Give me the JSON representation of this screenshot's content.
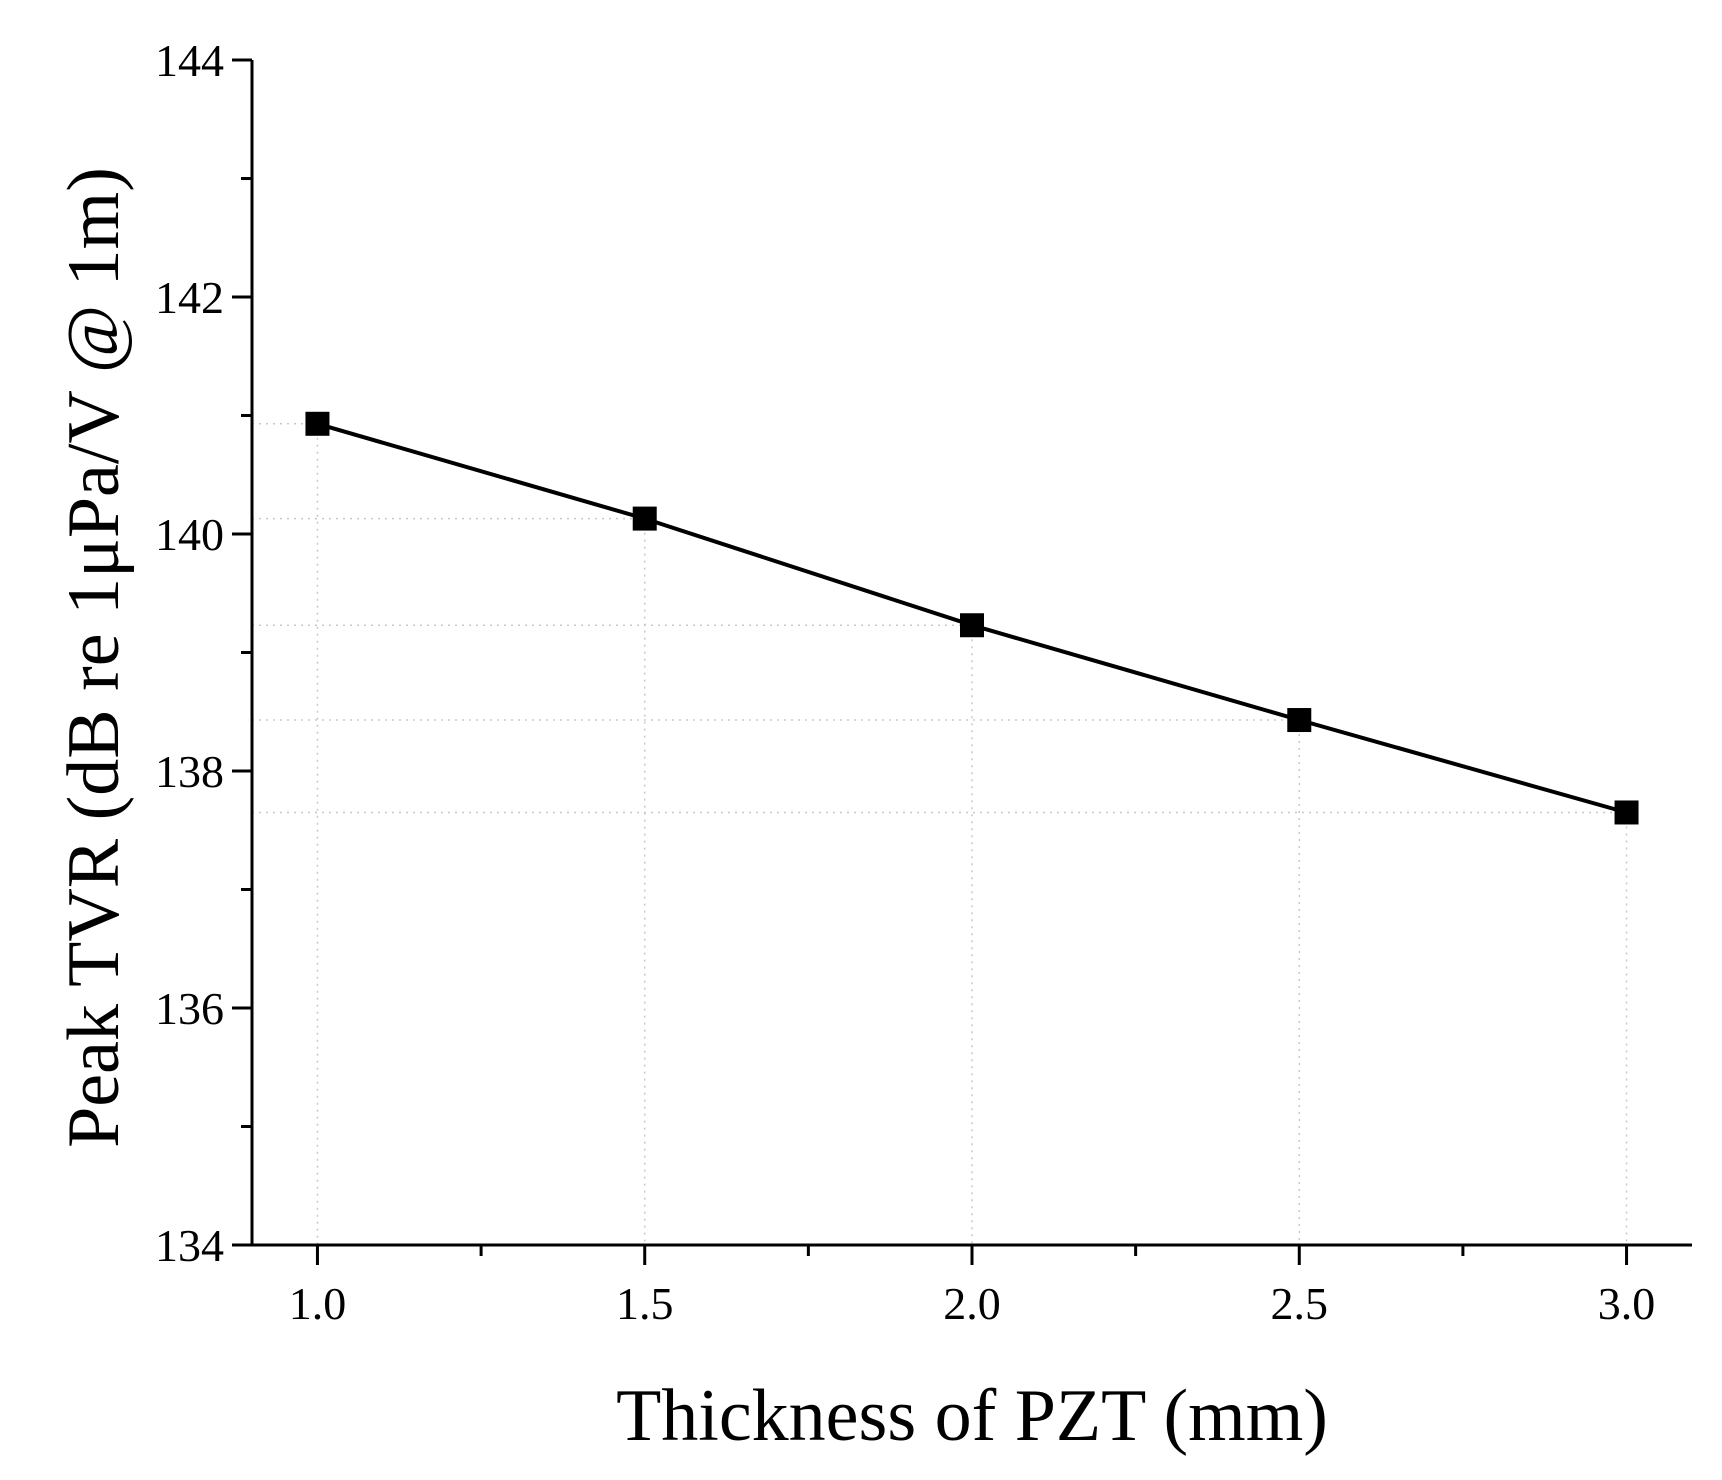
{
  "chart_data": {
    "type": "line",
    "title": "",
    "xlabel": "Thickness of PZT (mm)",
    "ylabel": "Peak TVR  (dB re 1μPa/V @ 1m)",
    "xlim": [
      0.9,
      3.1
    ],
    "ylim": [
      134,
      144
    ],
    "x_ticks": [
      1.0,
      1.5,
      2.0,
      2.5,
      3.0
    ],
    "x_tick_labels": [
      "1.0",
      "1.5",
      "2.0",
      "2.5",
      "3.0"
    ],
    "x_minor_ticks": [
      1.25,
      1.75,
      2.25,
      2.75
    ],
    "y_ticks": [
      134,
      136,
      138,
      140,
      142,
      144
    ],
    "y_tick_labels": [
      "134",
      "136",
      "138",
      "140",
      "142",
      "144"
    ],
    "y_minor_ticks": [
      135,
      137,
      139,
      141,
      143
    ],
    "grid": "dotted drop lines to data points",
    "legend": "none",
    "series": [
      {
        "name": "Peak TVR",
        "marker": "square",
        "color": "#000000",
        "x": [
          1.0,
          1.5,
          2.0,
          2.5,
          3.0
        ],
        "values": [
          140.93,
          140.13,
          139.23,
          138.43,
          137.65
        ]
      }
    ]
  }
}
